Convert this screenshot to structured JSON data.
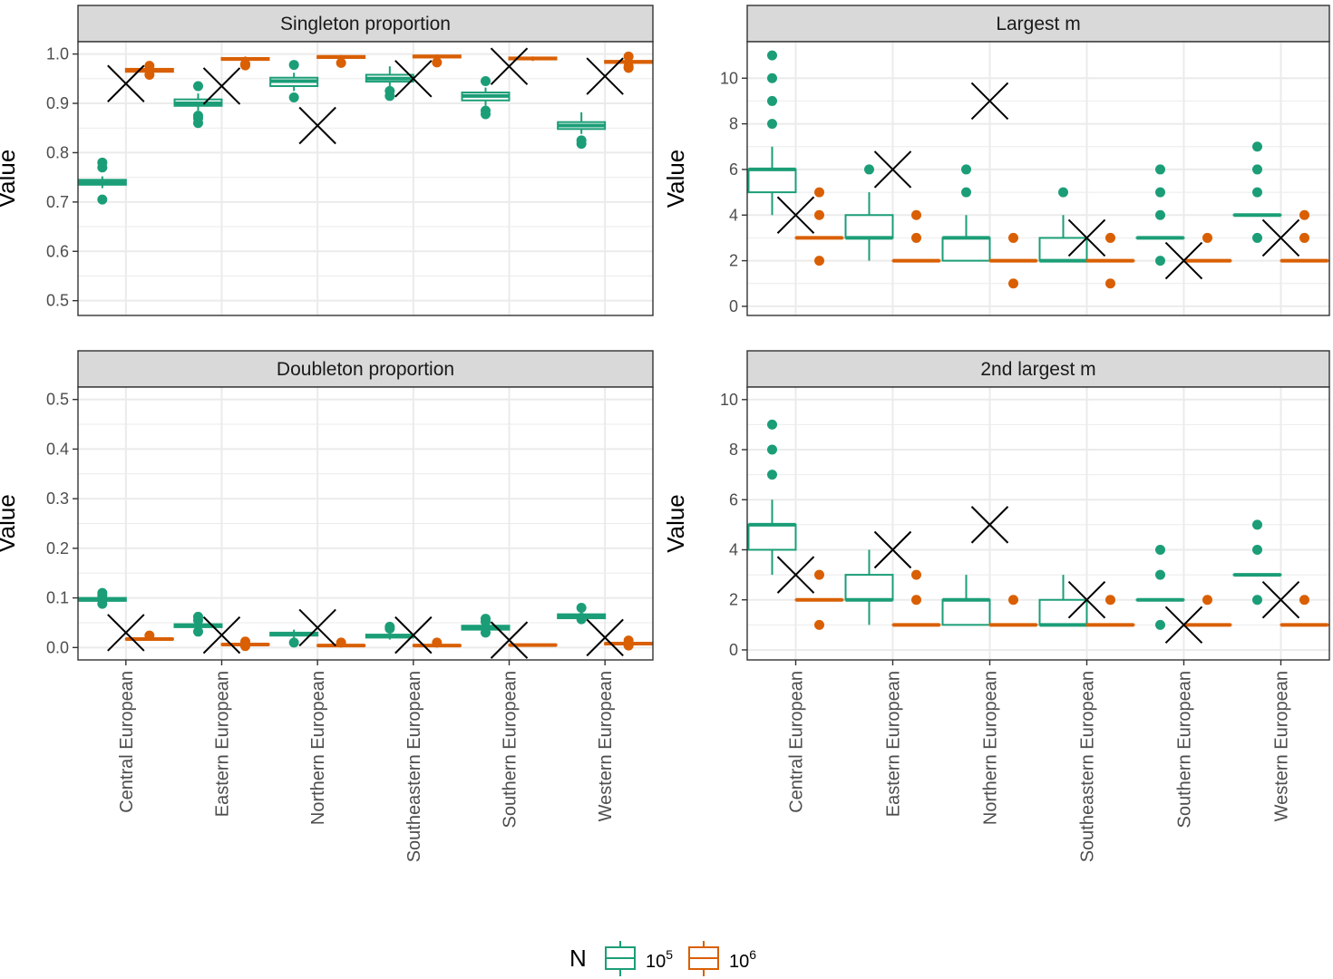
{
  "chart_data": {
    "type": "box",
    "categories": [
      "Central European",
      "Eastern European",
      "Northern European",
      "Southeastern European",
      "Southern European",
      "Western European"
    ],
    "ylabel": "Value",
    "legend": {
      "title": "N",
      "position": "bottom",
      "entries": [
        {
          "base": "10",
          "exp": "5",
          "color": "#1b9e77"
        },
        {
          "base": "10",
          "exp": "6",
          "color": "#d95f02"
        }
      ]
    },
    "panels": [
      {
        "title": "Singleton proportion",
        "ylim": [
          0.47,
          1.025
        ],
        "yticks": [
          0.5,
          0.6,
          0.7,
          0.8,
          0.9,
          1.0
        ],
        "ytick_labels": [
          "0.5",
          "0.6",
          "0.7",
          "0.8",
          "0.9",
          "1.0"
        ],
        "series": [
          {
            "name": "10^5",
            "color": "#1b9e77",
            "boxes": [
              {
                "q1": 0.735,
                "median": 0.74,
                "q3": 0.745,
                "lo": 0.728,
                "hi": 0.752,
                "outliers": [
                  0.78,
                  0.77,
                  0.705
                ]
              },
              {
                "q1": 0.895,
                "median": 0.9,
                "q3": 0.908,
                "lo": 0.885,
                "hi": 0.92,
                "outliers": [
                  0.935,
                  0.875,
                  0.86,
                  0.87
                ]
              },
              {
                "q1": 0.935,
                "median": 0.945,
                "q3": 0.952,
                "lo": 0.925,
                "hi": 0.962,
                "outliers": [
                  0.978,
                  0.912
                ]
              },
              {
                "q1": 0.944,
                "median": 0.95,
                "q3": 0.958,
                "lo": 0.932,
                "hi": 0.975,
                "outliers": [
                  0.915,
                  0.925
                ]
              },
              {
                "q1": 0.906,
                "median": 0.915,
                "q3": 0.922,
                "lo": 0.895,
                "hi": 0.932,
                "outliers": [
                  0.945,
                  0.885,
                  0.878
                ]
              },
              {
                "q1": 0.848,
                "median": 0.855,
                "q3": 0.862,
                "lo": 0.838,
                "hi": 0.882,
                "outliers": [
                  0.825,
                  0.818
                ]
              }
            ]
          },
          {
            "name": "10^6",
            "color": "#d95f02",
            "boxes": [
              {
                "q1": 0.964,
                "median": 0.967,
                "q3": 0.97,
                "lo": 0.96,
                "hi": 0.975,
                "outliers": [
                  0.976,
                  0.958
                ]
              },
              {
                "q1": 0.988,
                "median": 0.99,
                "q3": 0.992,
                "lo": 0.985,
                "hi": 0.995,
                "outliers": [
                  0.98,
                  0.977
                ]
              },
              {
                "q1": 0.992,
                "median": 0.994,
                "q3": 0.996,
                "lo": 0.988,
                "hi": 0.998,
                "outliers": [
                  0.982
                ]
              },
              {
                "q1": 0.993,
                "median": 0.995,
                "q3": 0.997,
                "lo": 0.99,
                "hi": 0.999,
                "outliers": [
                  0.983
                ]
              },
              {
                "q1": 0.989,
                "median": 0.991,
                "q3": 0.993,
                "lo": 0.986,
                "hi": 0.995,
                "outliers": []
              },
              {
                "q1": 0.982,
                "median": 0.984,
                "q3": 0.986,
                "lo": 0.978,
                "hi": 0.99,
                "outliers": [
                  0.995,
                  0.975,
                  0.972
                ]
              }
            ]
          }
        ],
        "observed": [
          0.94,
          0.935,
          0.855,
          0.95,
          0.975,
          0.955
        ]
      },
      {
        "title": "Largest m",
        "ylim": [
          -0.4,
          11.6
        ],
        "yticks": [
          0,
          2,
          4,
          6,
          8,
          10
        ],
        "ytick_labels": [
          "0",
          "2",
          "4",
          "6",
          "8",
          "10"
        ],
        "series": [
          {
            "name": "10^5",
            "color": "#1b9e77",
            "boxes": [
              {
                "q1": 5,
                "median": 6,
                "q3": 6,
                "lo": 4,
                "hi": 7,
                "outliers": [
                  8,
                  9,
                  10,
                  11
                ]
              },
              {
                "q1": 3,
                "median": 3,
                "q3": 4,
                "lo": 2,
                "hi": 5,
                "outliers": [
                  6
                ]
              },
              {
                "q1": 2,
                "median": 3,
                "q3": 3,
                "lo": 2,
                "hi": 4,
                "outliers": [
                  5,
                  6
                ]
              },
              {
                "q1": 2,
                "median": 2,
                "q3": 3,
                "lo": 2,
                "hi": 4,
                "outliers": [
                  5
                ]
              },
              {
                "q1": 3,
                "median": 3,
                "q3": 3,
                "lo": 3,
                "hi": 3,
                "outliers": [
                  2,
                  4,
                  5,
                  6
                ]
              },
              {
                "q1": 4,
                "median": 4,
                "q3": 4,
                "lo": 4,
                "hi": 4,
                "outliers": [
                  3,
                  5,
                  6,
                  7
                ]
              }
            ]
          },
          {
            "name": "10^6",
            "color": "#d95f02",
            "boxes": [
              {
                "q1": 3,
                "median": 3,
                "q3": 3,
                "lo": 3,
                "hi": 3,
                "outliers": [
                  2,
                  4,
                  5
                ]
              },
              {
                "q1": 2,
                "median": 2,
                "q3": 2,
                "lo": 2,
                "hi": 2,
                "outliers": [
                  3,
                  4
                ]
              },
              {
                "q1": 2,
                "median": 2,
                "q3": 2,
                "lo": 2,
                "hi": 2,
                "outliers": [
                  1,
                  3
                ]
              },
              {
                "q1": 2,
                "median": 2,
                "q3": 2,
                "lo": 2,
                "hi": 2,
                "outliers": [
                  1,
                  3
                ]
              },
              {
                "q1": 2,
                "median": 2,
                "q3": 2,
                "lo": 2,
                "hi": 2,
                "outliers": [
                  3
                ]
              },
              {
                "q1": 2,
                "median": 2,
                "q3": 2,
                "lo": 2,
                "hi": 2,
                "outliers": [
                  3,
                  4
                ]
              }
            ]
          }
        ],
        "observed": [
          4,
          6,
          9,
          3,
          2,
          3
        ]
      },
      {
        "title": "Doubleton proportion",
        "ylim": [
          -0.025,
          0.525
        ],
        "yticks": [
          0.0,
          0.1,
          0.2,
          0.3,
          0.4,
          0.5
        ],
        "ytick_labels": [
          "0.0",
          "0.1",
          "0.2",
          "0.3",
          "0.4",
          "0.5"
        ],
        "series": [
          {
            "name": "10^5",
            "color": "#1b9e77",
            "boxes": [
              {
                "q1": 0.094,
                "median": 0.097,
                "q3": 0.1,
                "lo": 0.09,
                "hi": 0.105,
                "outliers": [
                  0.11,
                  0.105,
                  0.088
                ]
              },
              {
                "q1": 0.041,
                "median": 0.044,
                "q3": 0.047,
                "lo": 0.038,
                "hi": 0.05,
                "outliers": [
                  0.062,
                  0.055,
                  0.032
                ]
              },
              {
                "q1": 0.024,
                "median": 0.027,
                "q3": 0.03,
                "lo": 0.018,
                "hi": 0.036,
                "outliers": [
                  0.01
                ]
              },
              {
                "q1": 0.02,
                "median": 0.023,
                "q3": 0.026,
                "lo": 0.016,
                "hi": 0.032,
                "outliers": [
                  0.042,
                  0.038
                ]
              },
              {
                "q1": 0.036,
                "median": 0.04,
                "q3": 0.044,
                "lo": 0.032,
                "hi": 0.05,
                "outliers": [
                  0.058,
                  0.052,
                  0.03
                ]
              },
              {
                "q1": 0.059,
                "median": 0.063,
                "q3": 0.067,
                "lo": 0.055,
                "hi": 0.072,
                "outliers": [
                  0.08,
                  0.06,
                  0.057
                ]
              }
            ]
          },
          {
            "name": "10^6",
            "color": "#d95f02",
            "boxes": [
              {
                "q1": 0.016,
                "median": 0.017,
                "q3": 0.018,
                "lo": 0.015,
                "hi": 0.019,
                "outliers": [
                  0.024
                ]
              },
              {
                "q1": 0.005,
                "median": 0.006,
                "q3": 0.007,
                "lo": 0.004,
                "hi": 0.008,
                "outliers": [
                  0.012,
                  0.003
                ]
              },
              {
                "q1": 0.003,
                "median": 0.004,
                "q3": 0.005,
                "lo": 0.002,
                "hi": 0.006,
                "outliers": [
                  0.01
                ]
              },
              {
                "q1": 0.003,
                "median": 0.004,
                "q3": 0.005,
                "lo": 0.002,
                "hi": 0.006,
                "outliers": [
                  0.01
                ]
              },
              {
                "q1": 0.004,
                "median": 0.005,
                "q3": 0.006,
                "lo": 0.003,
                "hi": 0.007,
                "outliers": []
              },
              {
                "q1": 0.006,
                "median": 0.008,
                "q3": 0.009,
                "lo": 0.005,
                "hi": 0.01,
                "outliers": [
                  0.014,
                  0.004
                ]
              }
            ]
          }
        ],
        "observed": [
          0.03,
          0.025,
          0.04,
          0.025,
          0.015,
          0.02
        ]
      },
      {
        "title": "2nd largest m",
        "ylim": [
          -0.4,
          10.5
        ],
        "yticks": [
          0,
          2,
          4,
          6,
          8,
          10
        ],
        "ytick_labels": [
          "0",
          "2",
          "4",
          "6",
          "8",
          "10"
        ],
        "series": [
          {
            "name": "10^5",
            "color": "#1b9e77",
            "boxes": [
              {
                "q1": 4,
                "median": 5,
                "q3": 5,
                "lo": 3,
                "hi": 6,
                "outliers": [
                  7,
                  8,
                  9
                ]
              },
              {
                "q1": 2,
                "median": 2,
                "q3": 3,
                "lo": 1,
                "hi": 4,
                "outliers": []
              },
              {
                "q1": 1,
                "median": 2,
                "q3": 2,
                "lo": 1,
                "hi": 3,
                "outliers": []
              },
              {
                "q1": 1,
                "median": 1,
                "q3": 2,
                "lo": 1,
                "hi": 3,
                "outliers": []
              },
              {
                "q1": 2,
                "median": 2,
                "q3": 2,
                "lo": 2,
                "hi": 2,
                "outliers": [
                  1,
                  3,
                  4
                ]
              },
              {
                "q1": 3,
                "median": 3,
                "q3": 3,
                "lo": 3,
                "hi": 3,
                "outliers": [
                  2,
                  4,
                  5
                ]
              }
            ]
          },
          {
            "name": "10^6",
            "color": "#d95f02",
            "boxes": [
              {
                "q1": 2,
                "median": 2,
                "q3": 2,
                "lo": 2,
                "hi": 2,
                "outliers": [
                  1,
                  3
                ]
              },
              {
                "q1": 1,
                "median": 1,
                "q3": 1,
                "lo": 1,
                "hi": 1,
                "outliers": [
                  2,
                  3
                ]
              },
              {
                "q1": 1,
                "median": 1,
                "q3": 1,
                "lo": 1,
                "hi": 1,
                "outliers": [
                  2
                ]
              },
              {
                "q1": 1,
                "median": 1,
                "q3": 1,
                "lo": 1,
                "hi": 1,
                "outliers": [
                  2
                ]
              },
              {
                "q1": 1,
                "median": 1,
                "q3": 1,
                "lo": 1,
                "hi": 1,
                "outliers": [
                  2
                ]
              },
              {
                "q1": 1,
                "median": 1,
                "q3": 1,
                "lo": 1,
                "hi": 1,
                "outliers": [
                  2
                ]
              }
            ]
          }
        ],
        "observed": [
          3,
          4,
          5,
          2,
          1,
          2
        ]
      }
    ]
  }
}
